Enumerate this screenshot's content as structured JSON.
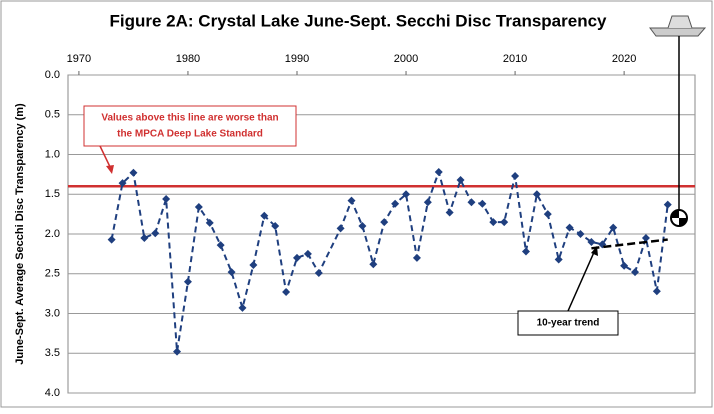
{
  "chart_data": {
    "type": "line",
    "title": "Figure 2A: Crystal Lake June-Sept. Secchi Disc Transparency",
    "y_label": "June-Sept. Average Secchi Disc Transparency (m)",
    "x": [
      1973,
      1974,
      1975,
      1976,
      1977,
      1978,
      1979,
      1980,
      1981,
      1982,
      1983,
      1984,
      1985,
      1986,
      1987,
      1988,
      1989,
      1990,
      1991,
      1992,
      1994,
      1995,
      1996,
      1997,
      1998,
      1999,
      2000,
      2001,
      2002,
      2003,
      2004,
      2005,
      2006,
      2007,
      2008,
      2009,
      2010,
      2011,
      2012,
      2013,
      2014,
      2015,
      2016,
      2017,
      2018,
      2019,
      2020,
      2021,
      2022,
      2023,
      2024
    ],
    "series": [
      {
        "name": "Secchi transparency",
        "color": "#1f3f7f",
        "values": [
          2.07,
          1.36,
          1.23,
          2.05,
          1.99,
          1.56,
          3.48,
          2.6,
          1.66,
          1.86,
          2.14,
          2.48,
          2.93,
          2.39,
          1.77,
          1.9,
          2.73,
          2.3,
          2.25,
          2.49,
          1.93,
          1.58,
          1.9,
          2.38,
          1.85,
          1.62,
          1.5,
          2.3,
          1.6,
          1.22,
          1.73,
          1.32,
          1.6,
          1.62,
          1.85,
          1.85,
          1.27,
          2.22,
          1.5,
          1.75,
          2.32,
          1.92,
          2.0,
          2.1,
          2.13,
          1.92,
          2.4,
          2.48,
          2.05,
          2.72,
          1.63
        ]
      }
    ],
    "trend": {
      "label": "10-year trend",
      "x": [
        2017,
        2024
      ],
      "values": [
        2.18,
        2.07
      ],
      "color": "#000000"
    },
    "standard": {
      "value": 1.4,
      "color": "#d03030",
      "label_lines": [
        "Values above this line are worse than",
        "the MPCA Deep Lake Standard"
      ]
    },
    "xlim": [
      1969,
      2026.5
    ],
    "xticks": [
      1970,
      1980,
      1990,
      2000,
      2010,
      2020
    ],
    "ylim": [
      0,
      4
    ],
    "inverted_y": true,
    "yticks": [
      {
        "value": 0,
        "label": "0.0"
      },
      {
        "value": 0.5,
        "label": "0.5"
      },
      {
        "value": 1,
        "label": "1.0"
      },
      {
        "value": 1.5,
        "label": "1.5"
      },
      {
        "value": 2,
        "label": "2.0"
      },
      {
        "value": 2.5,
        "label": "2.5"
      },
      {
        "value": 3,
        "label": "3.0"
      },
      {
        "value": 3.5,
        "label": "3.5"
      },
      {
        "value": 4,
        "label": "4.0"
      }
    ],
    "grid": true
  }
}
